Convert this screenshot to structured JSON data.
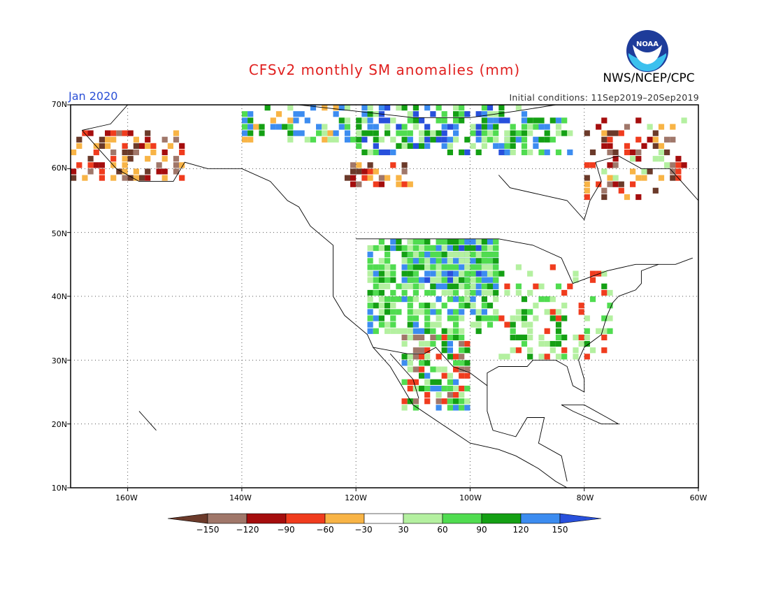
{
  "header": {
    "title": "CFSv2 monthly SM anomalies (mm)",
    "agency": "NWS/NCEP/CPC",
    "month": "Jan 2020",
    "initial_conditions": "Initial conditions: 11Sep2019–20Sep2019",
    "logo_text": "NOAA"
  },
  "map": {
    "lat_labels": [
      "70N",
      "60N",
      "50N",
      "40N",
      "30N",
      "20N",
      "10N"
    ],
    "lon_labels": [
      "160W",
      "140W",
      "120W",
      "100W",
      "80W",
      "60W"
    ],
    "extent": {
      "lon_min": -170,
      "lon_max": -60,
      "lat_min": 10,
      "lat_max": 70
    },
    "graticule": "dotted",
    "colors": {
      "land_outline": "#000000",
      "graticule": "#444444"
    }
  },
  "colorbar": {
    "labels": [
      "−150",
      "−120",
      "−90",
      "−60",
      "−30",
      "30",
      "60",
      "90",
      "120",
      "150"
    ],
    "bins": [
      {
        "range": "< -150",
        "color": "#6b3a2a"
      },
      {
        "range": "-150 to -120",
        "color": "#a0776a"
      },
      {
        "range": "-120 to -90",
        "color": "#a50d0d"
      },
      {
        "range": "-90 to -60",
        "color": "#f03c1e"
      },
      {
        "range": "-60 to -30",
        "color": "#f8b446"
      },
      {
        "range": "-30 to 30",
        "color": "#ffffff"
      },
      {
        "range": "30 to 60",
        "color": "#b4f0a0"
      },
      {
        "range": "60 to 90",
        "color": "#50dc50"
      },
      {
        "range": "90 to 120",
        "color": "#14a014"
      },
      {
        "range": "120 to 150",
        "color": "#3c8cf0"
      },
      {
        "range": "> 150",
        "color": "#2850dc"
      }
    ]
  }
}
